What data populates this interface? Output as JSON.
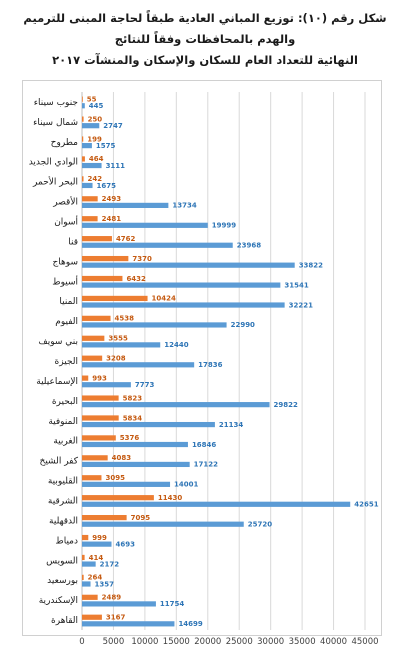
{
  "title": {
    "line1": "شكل رقم (١٠): توزيع المباني العادية طبقاً لحاجة المبنى للترميم والهدم بالمحافظات وفقاً للنتائج",
    "line2": "النهائية للتعداد العام للسكان والإسكان والمنشآت ٢٠١٧"
  },
  "colors": {
    "orange": "#ed7d31",
    "blue": "#5b9bd5",
    "orange_label": "#c55a11",
    "blue_label": "#2e75b6"
  },
  "chart_data": {
    "type": "bar",
    "orientation": "horizontal",
    "xlim": [
      0,
      45000
    ],
    "x_ticks": [
      0,
      5000,
      10000,
      15000,
      20000,
      25000,
      30000,
      35000,
      40000,
      45000
    ],
    "grid": true,
    "categories": [
      "جنوب سيناء",
      "شمال سيناء",
      "مطروح",
      "الوادي الجديد",
      "البحر الأحمر",
      "الأقصر",
      "أسوان",
      "قنا",
      "سوهاج",
      "أسيوط",
      "المنيا",
      "الفيوم",
      "بني سويف",
      "الجيزة",
      "الإسماعيلية",
      "البحيرة",
      "المنوفية",
      "الغربية",
      "كفر الشيخ",
      "القليوبية",
      "الشرقية",
      "الدقهلية",
      "دمياط",
      "السويس",
      "بورسعيد",
      "الإسكندرية",
      "القاهرة"
    ],
    "series": [
      {
        "color": "#ed7d31",
        "values": [
          55,
          250,
          199,
          464,
          242,
          2493,
          2481,
          4762,
          7370,
          6432,
          10424,
          4538,
          3555,
          3208,
          993,
          5823,
          5834,
          5376,
          4083,
          3095,
          11430,
          7095,
          999,
          414,
          264,
          2489,
          3167
        ]
      },
      {
        "color": "#5b9bd5",
        "values": [
          445,
          2747,
          1575,
          3111,
          1675,
          13734,
          19999,
          23968,
          33822,
          31541,
          32221,
          22990,
          12440,
          17836,
          7773,
          29822,
          21134,
          16846,
          17122,
          14001,
          42651,
          25720,
          4693,
          2172,
          1357,
          11754,
          14699
        ]
      }
    ]
  }
}
